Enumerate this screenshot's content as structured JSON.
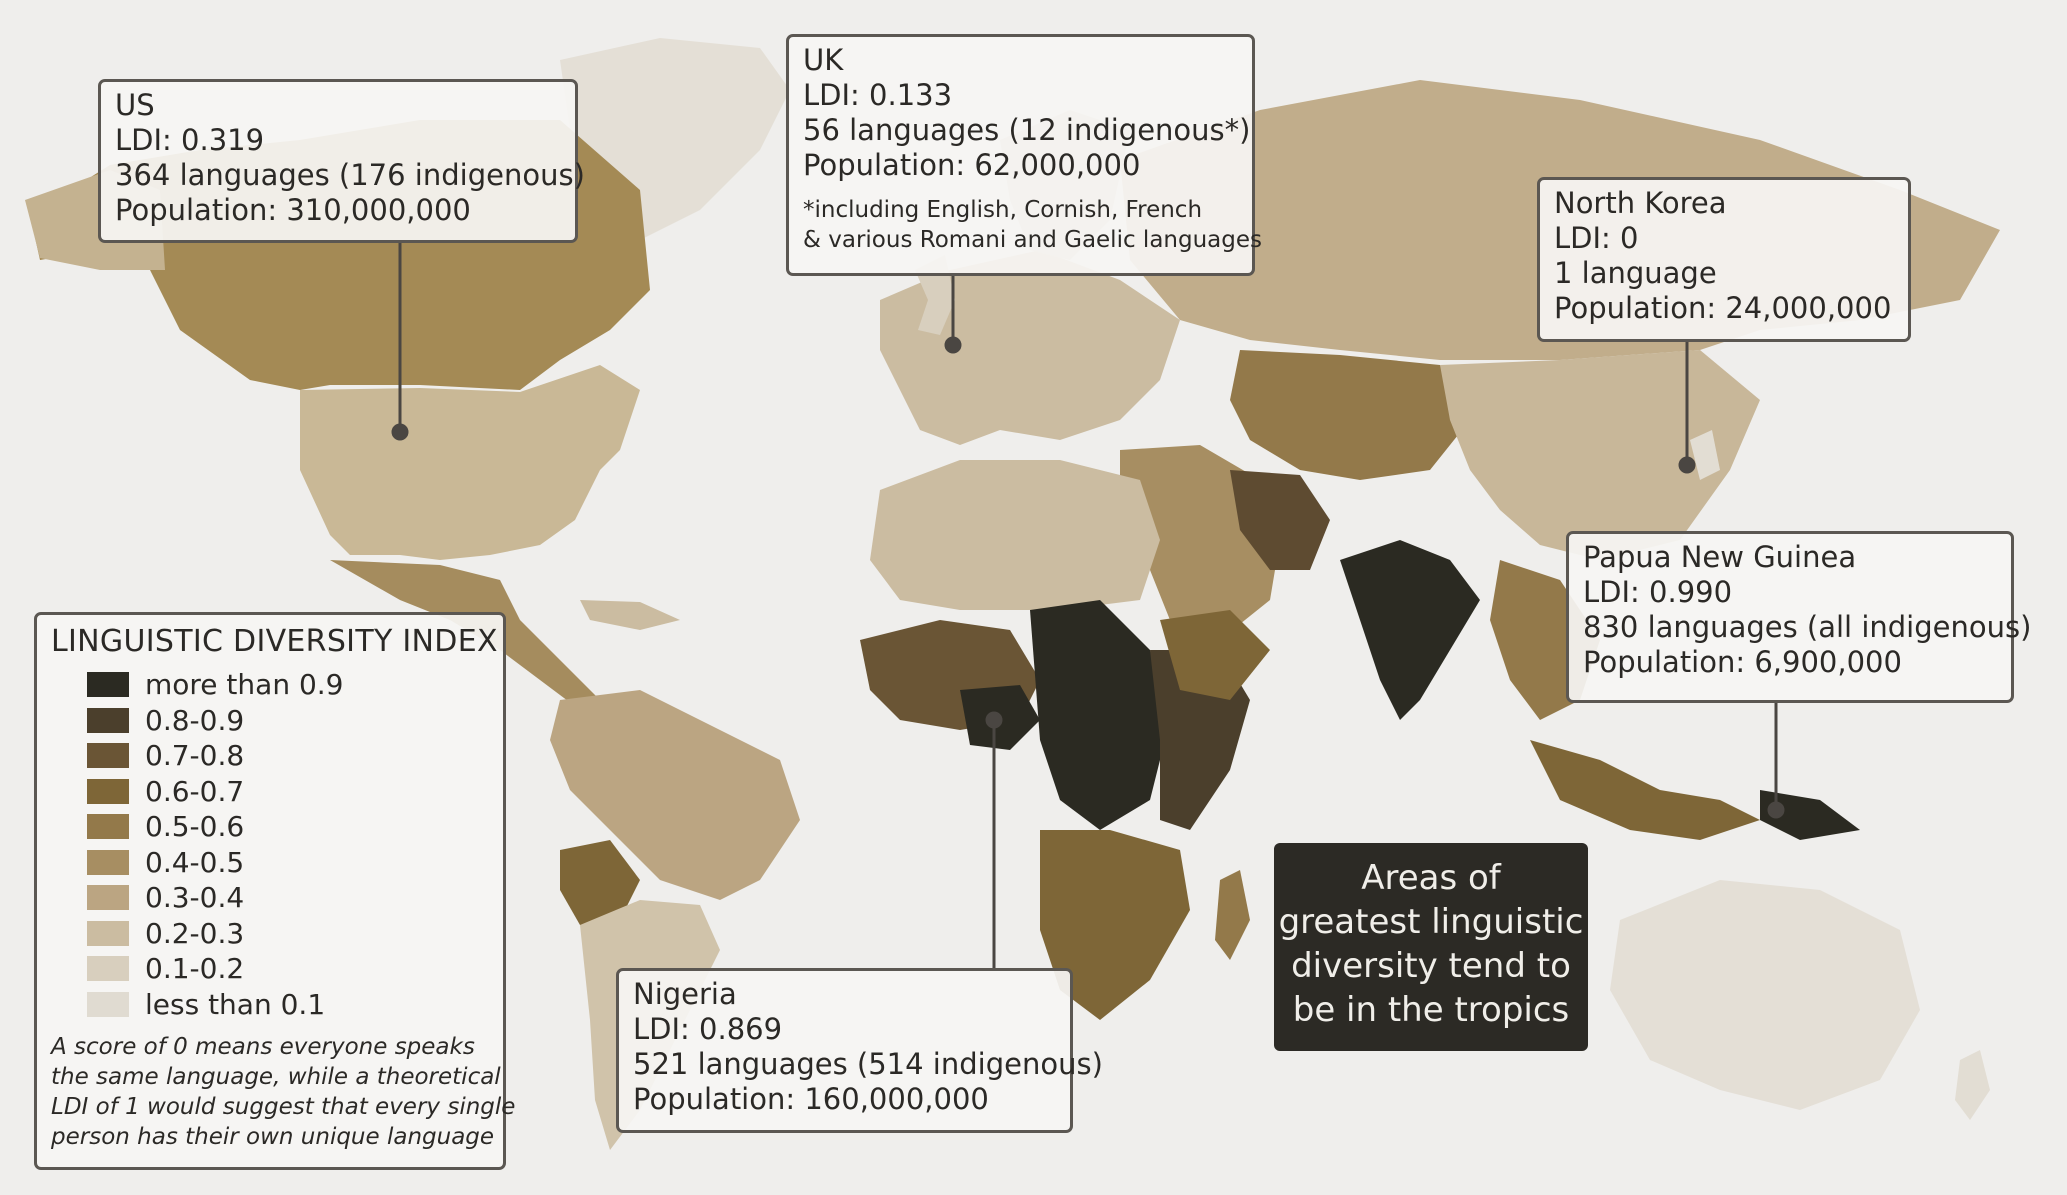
{
  "colors": {
    "ocean": "#efeeec",
    "frame": "#5b5752",
    "tropics_box": "#2c2a25",
    "scale": [
      "#2b2a22",
      "#4b3f2c",
      "#6a5535",
      "#7e6637",
      "#93794a",
      "#a78e62",
      "#bba582",
      "#cbbca1",
      "#d8cfbe",
      "#e0dbd1"
    ]
  },
  "callouts": {
    "us": {
      "country": "US",
      "ldi": "LDI: 0.319",
      "languages": "364 languages (176 indigenous)",
      "population": "Population: 310,000,000"
    },
    "uk": {
      "country": "UK",
      "ldi": "LDI: 0.133",
      "languages": "56 languages (12 indigenous*)",
      "population": "Population: 62,000,000",
      "note_line1": "*including English, Cornish, French",
      "note_line2": "& various Romani and Gaelic languages"
    },
    "north_korea": {
      "country": "North Korea",
      "ldi": "LDI: 0",
      "languages": "1 language",
      "population": "Population: 24,000,000"
    },
    "papua_new_guinea": {
      "country": "Papua New Guinea",
      "ldi": "LDI: 0.990",
      "languages": "830 languages (all indigenous)",
      "population": "Population: 6,900,000"
    },
    "nigeria": {
      "country": "Nigeria",
      "ldi": "LDI: 0.869",
      "languages": "521 languages (514 indigenous)",
      "population": "Population: 160,000,000"
    }
  },
  "legend": {
    "title": "LINGUISTIC DIVERSITY INDEX",
    "items": [
      {
        "label": "more than 0.9",
        "color": "#2b2a22"
      },
      {
        "label": "0.8-0.9",
        "color": "#4b3f2c"
      },
      {
        "label": "0.7-0.8",
        "color": "#6a5535"
      },
      {
        "label": "0.6-0.7",
        "color": "#7e6637"
      },
      {
        "label": "0.5-0.6",
        "color": "#93794a"
      },
      {
        "label": "0.4-0.5",
        "color": "#a78e62"
      },
      {
        "label": "0.3-0.4",
        "color": "#bba582"
      },
      {
        "label": "0.2-0.3",
        "color": "#cbbca1"
      },
      {
        "label": "0.1-0.2",
        "color": "#d8cfbe"
      },
      {
        "label": "less than 0.1",
        "color": "#e0dbd1"
      }
    ],
    "note_lines": [
      "A score of 0 means everyone speaks",
      "the same language, while a theoretical",
      "LDI of 1 would suggest that every single",
      "person has their own unique language"
    ]
  },
  "tropics_box": {
    "lines": [
      "Areas of",
      "greatest linguistic",
      "diversity tend to",
      "be in the tropics"
    ]
  }
}
